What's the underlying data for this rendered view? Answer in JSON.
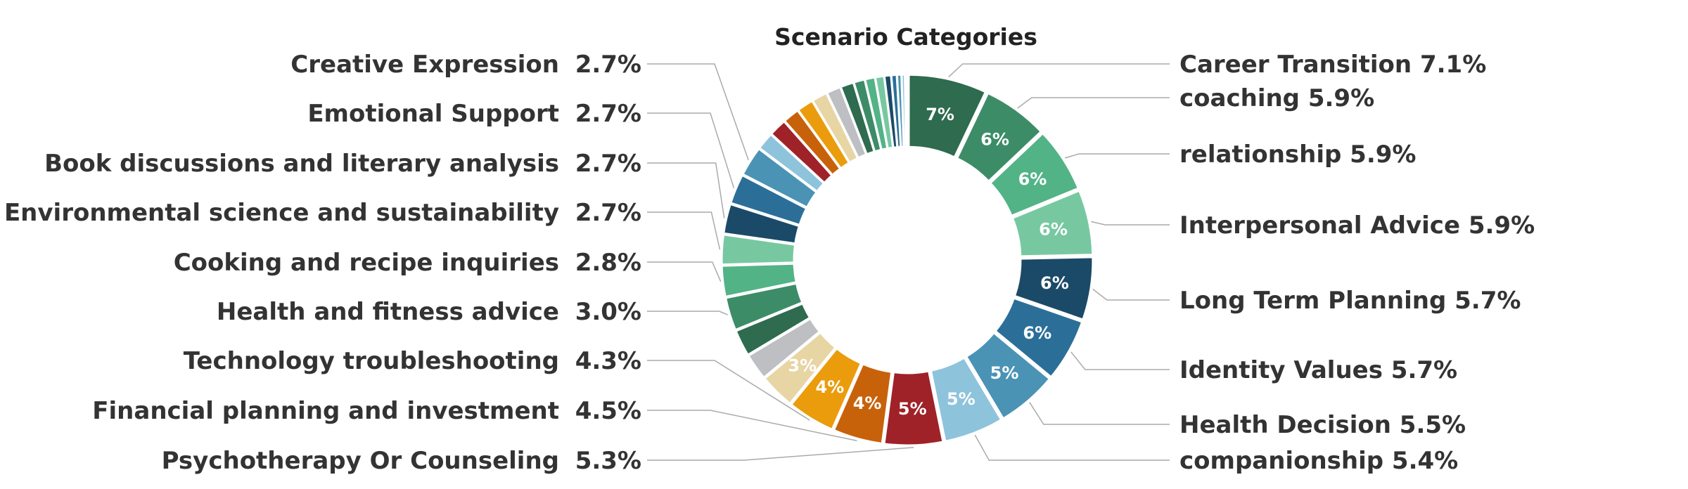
{
  "chart_data": {
    "type": "pie",
    "title": "Scenario Categories",
    "slices": [
      {
        "label": "Career Transition",
        "value": 7.1,
        "percent_label": "7.1%",
        "inner_label": "7%",
        "color": "#2e6b4f"
      },
      {
        "label": "coaching",
        "value": 5.9,
        "percent_label": "5.9%",
        "inner_label": "6%",
        "color": "#3d8c68"
      },
      {
        "label": "relationship",
        "value": 5.9,
        "percent_label": "5.9%",
        "inner_label": "6%",
        "color": "#52b386"
      },
      {
        "label": "Interpersonal Advice",
        "value": 5.9,
        "percent_label": "5.9%",
        "inner_label": "6%",
        "color": "#77c8a0"
      },
      {
        "label": "Long Term Planning",
        "value": 5.7,
        "percent_label": "5.7%",
        "inner_label": "6%",
        "color": "#1b4a68"
      },
      {
        "label": "Identity Values",
        "value": 5.7,
        "percent_label": "5.7%",
        "inner_label": "6%",
        "color": "#2b6f99"
      },
      {
        "label": "Health Decision",
        "value": 5.5,
        "percent_label": "5.5%",
        "inner_label": "5%",
        "color": "#4a93b5"
      },
      {
        "label": "companionship",
        "value": 5.4,
        "percent_label": "5.4%",
        "inner_label": "5%",
        "color": "#8ec3dc"
      },
      {
        "label": "Psychotherapy Or Counseling",
        "value": 5.3,
        "percent_label": "5.3%",
        "inner_label": "5%",
        "color": "#9e2228"
      },
      {
        "label": "Financial planning and investment",
        "value": 4.5,
        "percent_label": "4.5%",
        "inner_label": "4%",
        "color": "#c8620a"
      },
      {
        "label": "Technology troubleshooting",
        "value": 4.3,
        "percent_label": "4.3%",
        "inner_label": "4%",
        "color": "#eb9c0c"
      },
      {
        "label": "",
        "value": 3.2,
        "percent_label": "",
        "inner_label": "3%",
        "color": "#e8d5a4"
      },
      {
        "label": "",
        "value": 2.4,
        "percent_label": "",
        "inner_label": "",
        "color": "#bdbfc2"
      },
      {
        "label": "",
        "value": 2.4,
        "percent_label": "",
        "inner_label": "",
        "color": "#2e6b4f"
      },
      {
        "label": "Health and fitness advice",
        "value": 3.0,
        "percent_label": "3.0%",
        "inner_label": "",
        "color": "#3d8c68"
      },
      {
        "label": "Cooking and recipe inquiries",
        "value": 2.8,
        "percent_label": "2.8%",
        "inner_label": "",
        "color": "#52b386"
      },
      {
        "label": "Environmental science and sustainability",
        "value": 2.7,
        "percent_label": "2.7%",
        "inner_label": "",
        "color": "#77c8a0"
      },
      {
        "label": "Book discussions and literary analysis",
        "value": 2.7,
        "percent_label": "2.7%",
        "inner_label": "",
        "color": "#1b4a68"
      },
      {
        "label": "Emotional Support",
        "value": 2.7,
        "percent_label": "2.7%",
        "inner_label": "",
        "color": "#2b6f99"
      },
      {
        "label": "Creative Expression",
        "value": 2.7,
        "percent_label": "2.7%",
        "inner_label": "",
        "color": "#4a93b5"
      },
      {
        "label": "",
        "value": 1.6,
        "percent_label": "",
        "inner_label": "",
        "color": "#8ec3dc"
      },
      {
        "label": "",
        "value": 1.6,
        "percent_label": "",
        "inner_label": "",
        "color": "#9e2228"
      },
      {
        "label": "",
        "value": 1.5,
        "percent_label": "",
        "inner_label": "",
        "color": "#c8620a"
      },
      {
        "label": "",
        "value": 1.5,
        "percent_label": "",
        "inner_label": "",
        "color": "#eb9c0c"
      },
      {
        "label": "",
        "value": 1.4,
        "percent_label": "",
        "inner_label": "",
        "color": "#e8d5a4"
      },
      {
        "label": "",
        "value": 1.3,
        "percent_label": "",
        "inner_label": "",
        "color": "#bdbfc2"
      },
      {
        "label": "",
        "value": 1.2,
        "percent_label": "",
        "inner_label": "",
        "color": "#2e6b4f"
      },
      {
        "label": "",
        "value": 1.0,
        "percent_label": "",
        "inner_label": "",
        "color": "#3d8c68"
      },
      {
        "label": "",
        "value": 0.9,
        "percent_label": "",
        "inner_label": "",
        "color": "#52b386"
      },
      {
        "label": "",
        "value": 0.8,
        "percent_label": "",
        "inner_label": "",
        "color": "#77c8a0"
      },
      {
        "label": "",
        "value": 0.6,
        "percent_label": "",
        "inner_label": "",
        "color": "#1b4a68"
      },
      {
        "label": "",
        "value": 0.5,
        "percent_label": "",
        "inner_label": "",
        "color": "#2b6f99"
      },
      {
        "label": "",
        "value": 0.4,
        "percent_label": "",
        "inner_label": "",
        "color": "#4a93b5"
      },
      {
        "label": "",
        "value": 0.3,
        "percent_label": "",
        "inner_label": "",
        "color": "#8ec3dc"
      },
      {
        "label": "",
        "value": 0.2,
        "percent_label": "",
        "inner_label": "",
        "color": "#bdbfc2"
      }
    ],
    "labels_right": [
      "Career Transition",
      "coaching",
      "relationship",
      "Interpersonal Advice",
      "Long Term Planning",
      "Identity Values",
      "Health Decision",
      "companionship"
    ],
    "labels_left": [
      "Creative Expression",
      "Emotional Support",
      "Book discussions and literary analysis",
      "Environmental science and sustainability",
      "Cooking and recipe inquiries",
      "Health and fitness advice",
      "Technology troubleshooting",
      "Financial planning and investment",
      "Psychotherapy Or Counseling"
    ],
    "start_angle_deg": 90,
    "direction": "clockwise",
    "donut": true,
    "exploded": true,
    "legend": "none"
  }
}
